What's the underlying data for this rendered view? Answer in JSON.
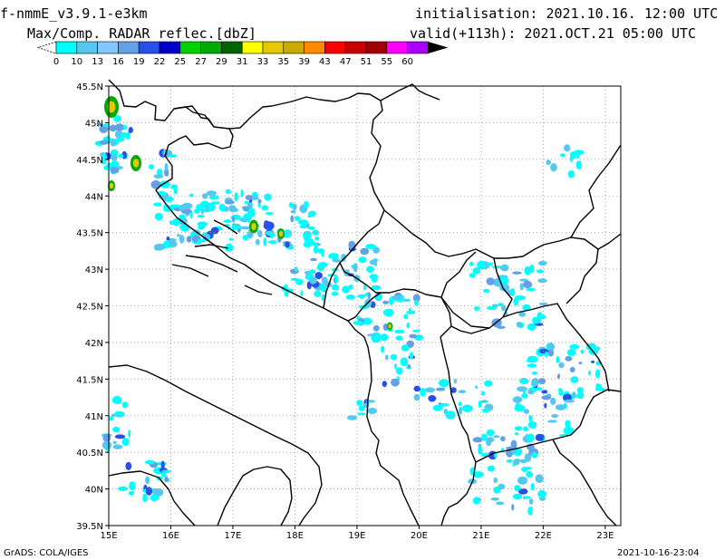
{
  "header": {
    "model": "f-nmmE_v3.9.1-e3km",
    "product": "Max/Comp. RADAR reflec.[dbZ]",
    "initialisation": "initialisation: 2021.10.16. 12:00 UTC",
    "valid": "valid(+113h): 2021.OCT.21 05:00 UTC"
  },
  "colorbar": {
    "labels": [
      "0",
      "10",
      "13",
      "16",
      "19",
      "22",
      "25",
      "27",
      "29",
      "31",
      "33",
      "35",
      "39",
      "43",
      "47",
      "51",
      "55",
      "60"
    ],
    "colors": [
      "#ffffff",
      "#00ffff",
      "#55c8f0",
      "#80c8ff",
      "#64a0e6",
      "#2850e6",
      "#0000c8",
      "#00d200",
      "#00aa00",
      "#006400",
      "#ffff00",
      "#e6c800",
      "#c8aa00",
      "#ff8c00",
      "#ff0000",
      "#c80000",
      "#a00000",
      "#ff00ff",
      "#aa00ff",
      "#000000"
    ]
  },
  "map": {
    "lat_labels": [
      "45.5N",
      "45N",
      "44.5N",
      "44N",
      "43.5N",
      "43N",
      "42.5N",
      "42N",
      "41.5N",
      "41N",
      "40.5N",
      "40N",
      "39.5N"
    ],
    "lon_labels": [
      "15E",
      "16E",
      "17E",
      "18E",
      "19E",
      "20E",
      "21E",
      "22E",
      "23E"
    ],
    "lat_range": [
      39.5,
      45.5
    ],
    "lon_range": [
      15.0,
      23.25
    ],
    "grid": true,
    "colors": {
      "frame": "#000000",
      "grid": "#999999"
    }
  },
  "footer": {
    "credit": "GrADS: COLA/IGES",
    "rendered": "2021-10-16-23:04"
  }
}
